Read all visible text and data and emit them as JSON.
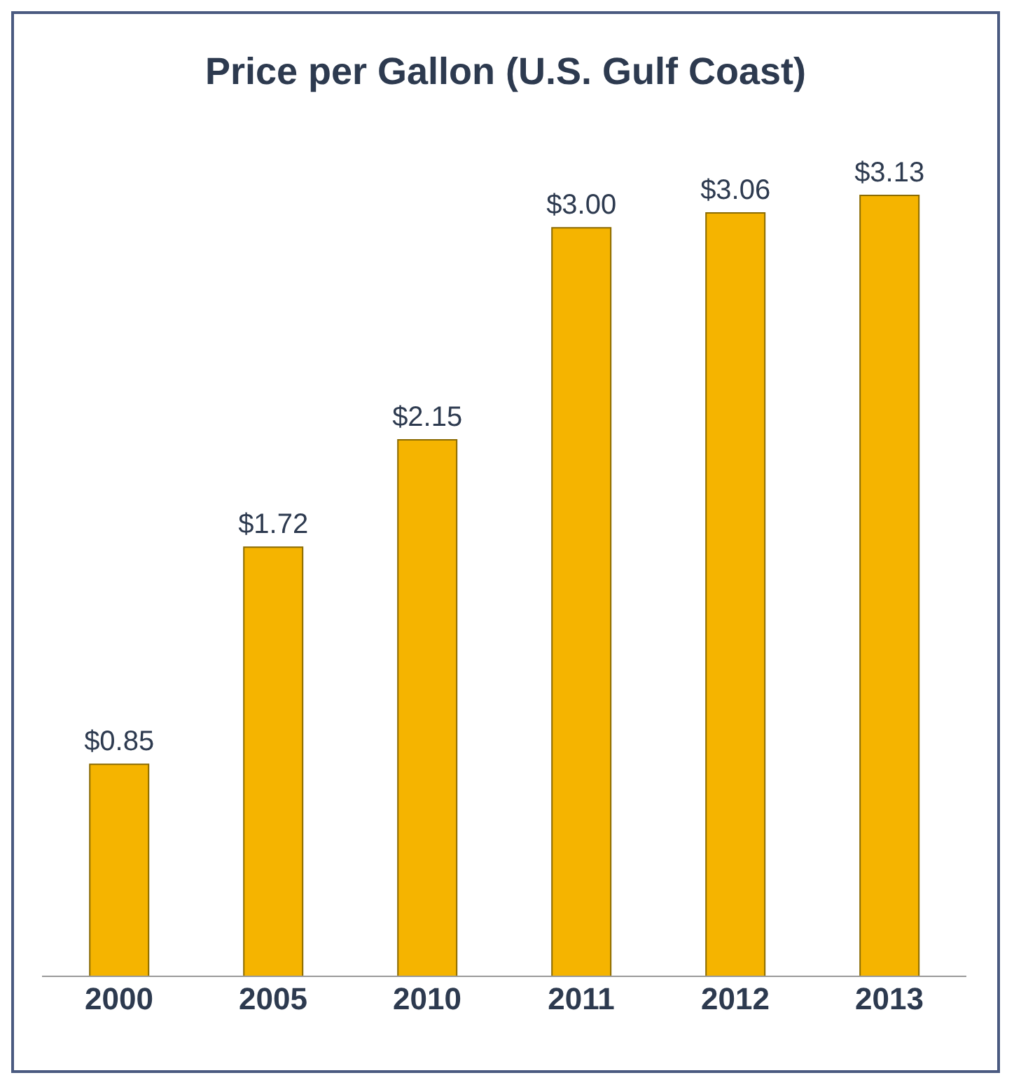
{
  "chart_data": {
    "type": "bar",
    "title": "Price per Gallon (U.S. Gulf Coast)",
    "categories": [
      "2000",
      "2005",
      "2010",
      "2011",
      "2012",
      "2013"
    ],
    "values": [
      0.85,
      1.72,
      2.15,
      3.0,
      3.06,
      3.13
    ],
    "value_labels": [
      "$0.85",
      "$1.72",
      "$2.15",
      "$3.00",
      "$3.06",
      "$3.13"
    ],
    "color": "#f5b400",
    "grid": false,
    "legend": false
  }
}
